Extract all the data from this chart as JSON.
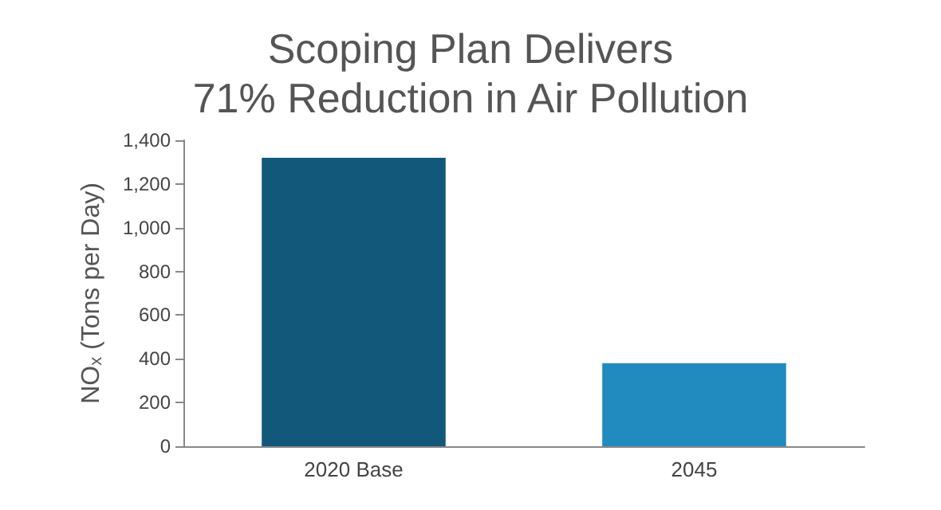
{
  "chart_data": {
    "type": "bar",
    "title": "Scoping Plan Delivers\n71% Reduction in Air Pollution",
    "categories": [
      "2020 Base",
      "2045"
    ],
    "values": [
      1320,
      380
    ],
    "colors": [
      "#12587a",
      "#218bc0"
    ],
    "ylabel": "NO$_{x}$ (Tons per Day)",
    "ylim": [
      0,
      1400
    ],
    "yticks": [
      0,
      200,
      400,
      600,
      800,
      {
        "value": 1000,
        "label": "1,000"
      },
      {
        "value": 1200,
        "label": "1,200"
      },
      {
        "value": 1400,
        "label": "1,400"
      }
    ],
    "grid": false
  }
}
